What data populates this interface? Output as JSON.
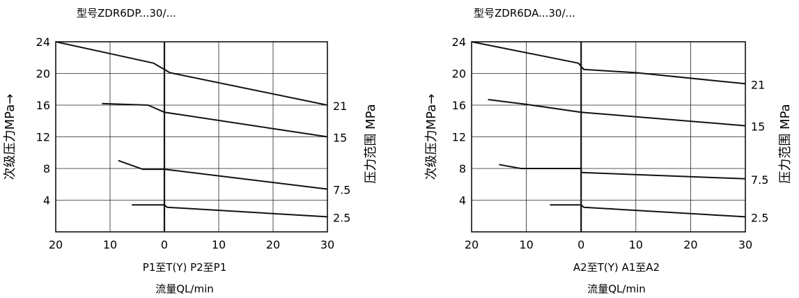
{
  "chart_data": [
    {
      "type": "line",
      "title": "型号ZDR6DP...30/...",
      "ylabel": "次级压力MPa→",
      "right_label": "压力范围 MPa",
      "caption_line1": "P1至T(Y) P2至P1",
      "caption_line2": "流量QL/min",
      "x_tick_labels": [
        "20",
        "10",
        "0",
        "10",
        "20",
        "30"
      ],
      "x_ticks": [
        -20,
        -10,
        0,
        10,
        20,
        30
      ],
      "y_ticks": [
        4,
        8,
        12,
        16,
        20,
        24
      ],
      "y_tick_labels": [
        "4",
        "8",
        "12",
        "16",
        "20",
        "24"
      ],
      "xlim": [
        -20,
        30
      ],
      "ylim": [
        0,
        24
      ],
      "grid": true,
      "series": [
        {
          "name": "21",
          "x": [
            -20,
            -2,
            0,
            1,
            30
          ],
          "y": [
            24,
            21.3,
            20.5,
            20.1,
            16
          ]
        },
        {
          "name": "15",
          "x": [
            -11.5,
            -3,
            0,
            30
          ],
          "y": [
            16.2,
            16.0,
            15.1,
            12
          ]
        },
        {
          "name": "7.5",
          "x": [
            -8.5,
            -4,
            0,
            30
          ],
          "y": [
            9.0,
            7.9,
            7.9,
            5.4
          ]
        },
        {
          "name": "2.5",
          "x": [
            -6,
            0,
            0.5,
            30
          ],
          "y": [
            3.4,
            3.4,
            3.1,
            1.9
          ]
        }
      ]
    },
    {
      "type": "line",
      "title": "型号ZDR6DA...30/...",
      "ylabel": "次级压力MPa→",
      "right_label": "压力范围 MPa",
      "caption_line1": "A2至T(Y)  A1至A2",
      "caption_line2": "流量QL/min",
      "x_tick_labels": [
        "20",
        "10",
        "0",
        "10",
        "20",
        "30"
      ],
      "x_ticks": [
        -20,
        -10,
        0,
        10,
        20,
        30
      ],
      "y_ticks": [
        4,
        8,
        12,
        16,
        20,
        24
      ],
      "y_tick_labels": [
        "4",
        "8",
        "12",
        "16",
        "20",
        "24"
      ],
      "xlim": [
        -20,
        30
      ],
      "ylim": [
        0,
        24
      ],
      "grid": true,
      "series": [
        {
          "name": "21",
          "x": [
            -20,
            -0.5,
            0.5,
            10,
            30
          ],
          "y": [
            24,
            21.3,
            20.5,
            20.1,
            18.7
          ]
        },
        {
          "name": "15",
          "x": [
            -17,
            -10,
            0,
            30
          ],
          "y": [
            16.7,
            16.1,
            15.1,
            13.4
          ]
        },
        {
          "name": "7.5",
          "x": [
            -15,
            -11,
            0,
            0,
            30
          ],
          "y": [
            8.5,
            8.0,
            8.0,
            7.5,
            6.7
          ]
        },
        {
          "name": "2.5",
          "x": [
            -5.7,
            0,
            0.5,
            30
          ],
          "y": [
            3.4,
            3.4,
            3.1,
            1.9
          ]
        }
      ]
    }
  ]
}
